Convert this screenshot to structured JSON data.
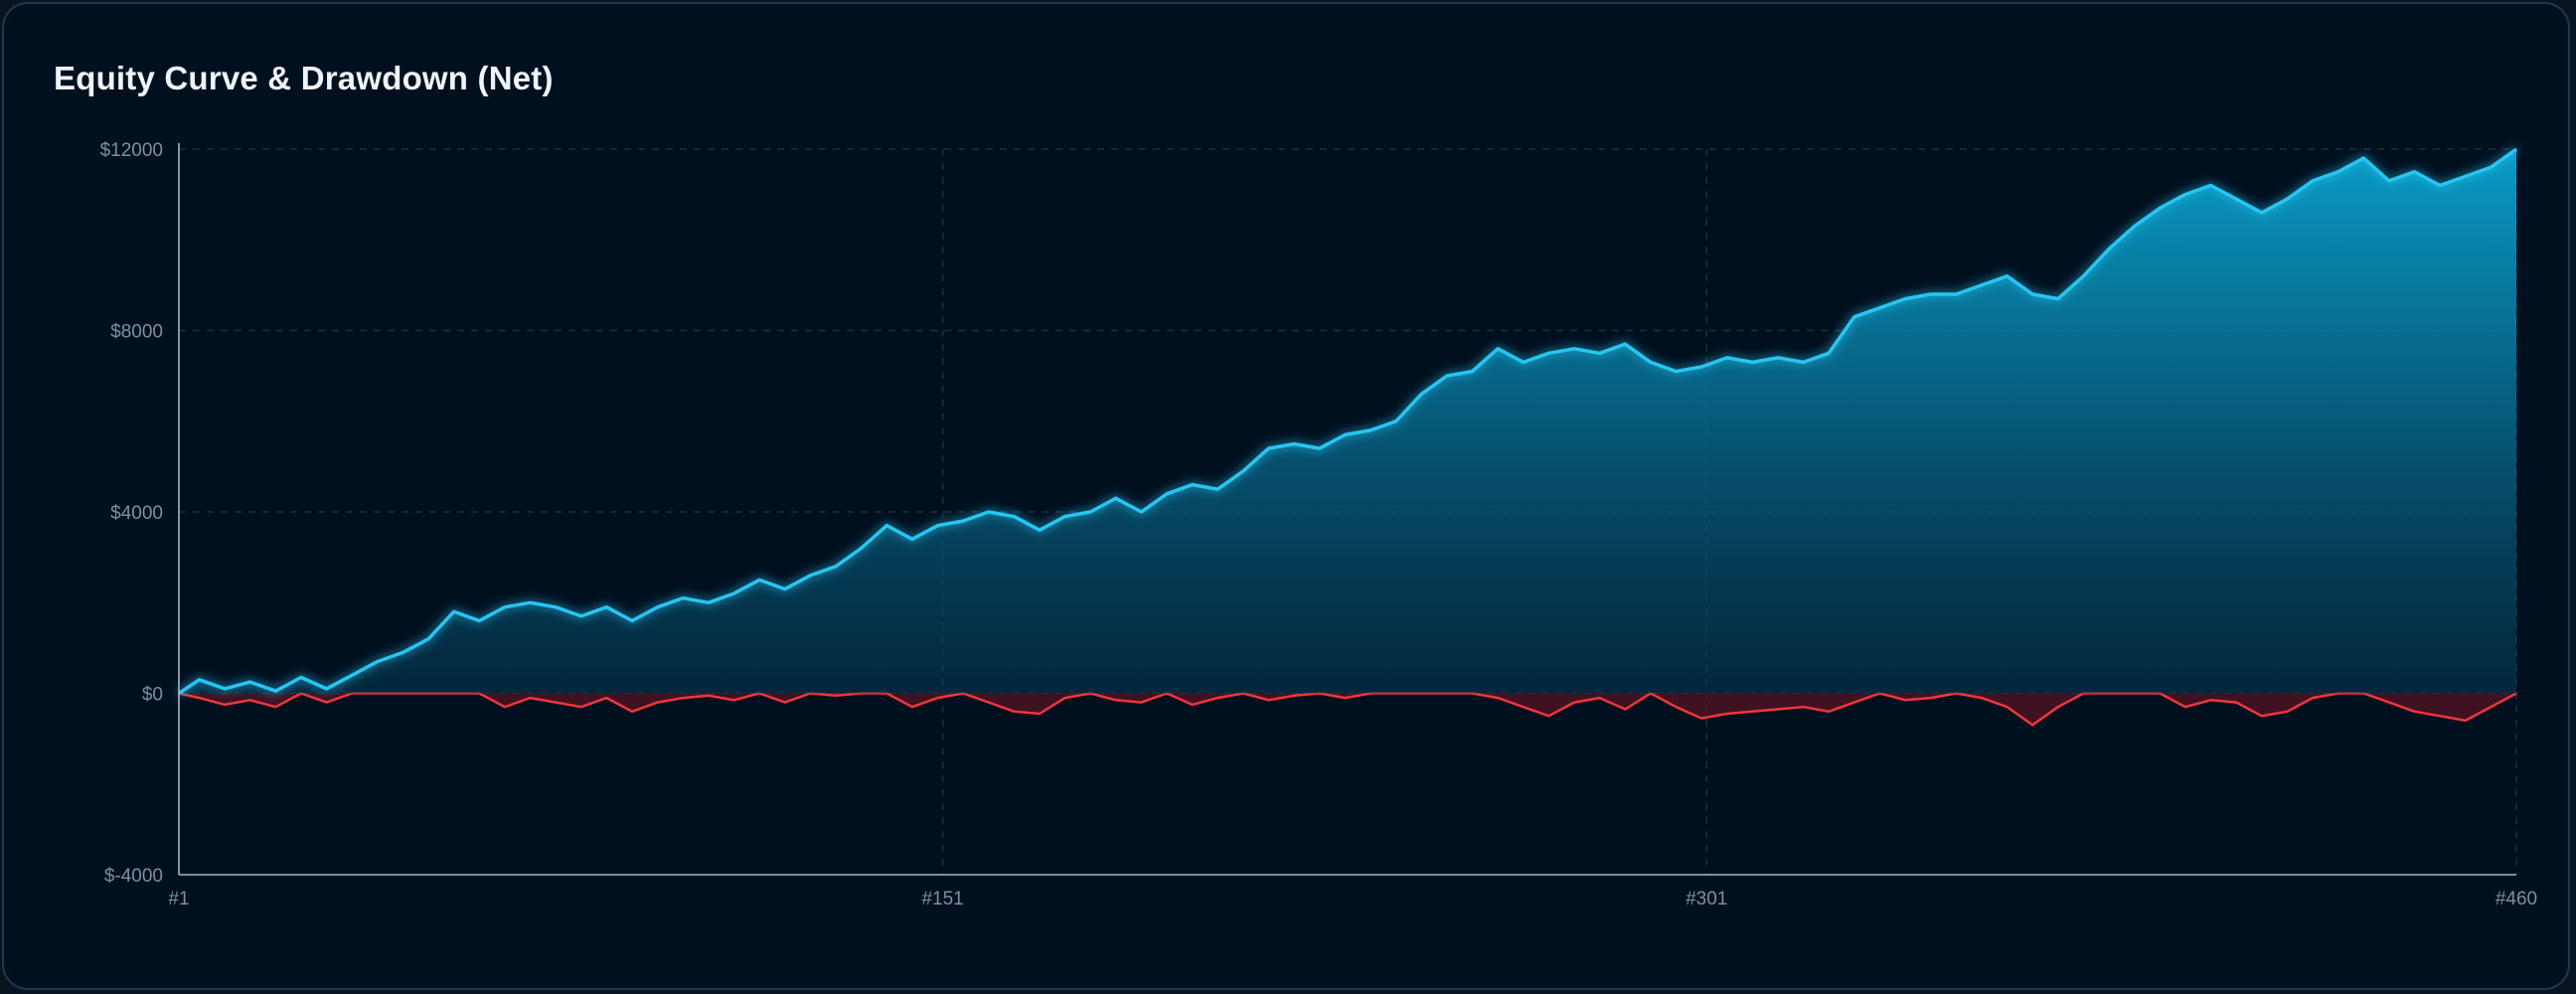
{
  "title": "Equity Curve & Drawdown (Net)",
  "colors": {
    "background": "#01101f",
    "equity_line": "#25c6f2",
    "equity_fill": "#0aa3cf",
    "drawdown_line": "#f0363c",
    "drawdown_fill": "#5a1422",
    "grid": "#1b3144",
    "axis": "#a9b6c4"
  },
  "chart_data": {
    "type": "area",
    "title": "Equity Curve & Drawdown (Net)",
    "xlabel": "",
    "ylabel": "",
    "x_ticks": [
      "#1",
      "#151",
      "#301",
      "#460"
    ],
    "y_ticks": [
      "$-4000",
      "$0",
      "$4000",
      "$8000",
      "$12000"
    ],
    "xlim": [
      1,
      460
    ],
    "ylim": [
      -4000,
      12000
    ],
    "grid": true,
    "legend": "none",
    "series": [
      {
        "x": [
          1,
          5,
          10,
          15,
          20,
          25,
          30,
          35,
          40,
          45,
          50,
          55,
          60,
          65,
          70,
          75,
          80,
          85,
          90,
          95,
          100,
          105,
          110,
          115,
          120,
          125,
          130,
          135,
          140,
          145,
          150,
          155,
          160,
          165,
          170,
          175,
          180,
          185,
          190,
          195,
          200,
          205,
          210,
          215,
          220,
          225,
          230,
          235,
          240,
          245,
          250,
          255,
          260,
          265,
          270,
          275,
          280,
          285,
          290,
          295,
          300,
          305,
          310,
          315,
          320,
          325,
          330,
          335,
          340,
          345,
          350,
          355,
          360,
          365,
          370,
          375,
          380,
          385,
          390,
          395,
          400,
          405,
          410,
          415,
          420,
          425,
          430,
          435,
          440,
          445,
          450,
          455,
          460
        ],
        "values": [
          0,
          300,
          100,
          250,
          50,
          350,
          100,
          400,
          700,
          900,
          1200,
          1800,
          1600,
          1900,
          2000,
          1900,
          1700,
          1900,
          1600,
          1900,
          2100,
          2000,
          2200,
          2500,
          2300,
          2600,
          2800,
          3200,
          3700,
          3400,
          3700,
          3800,
          4000,
          3900,
          3600,
          3900,
          4000,
          4300,
          4000,
          4400,
          4600,
          4500,
          4900,
          5400,
          5500,
          5400,
          5700,
          5800,
          6000,
          6600,
          7000,
          7100,
          7600,
          7300,
          7500,
          7600,
          7500,
          7700,
          7300,
          7100,
          7200,
          7400,
          7300,
          7400,
          7300,
          7500,
          8300,
          8500,
          8700,
          8800,
          8800,
          9000,
          9200,
          8800,
          8700,
          9200,
          9800,
          10300,
          10700,
          11000,
          11200,
          10900,
          10600,
          10900,
          11300,
          11500,
          11800,
          11300,
          11500,
          11200,
          11400,
          11600,
          12000
        ]
      },
      {
        "x": [
          1,
          5,
          10,
          15,
          20,
          25,
          30,
          35,
          40,
          45,
          50,
          55,
          60,
          65,
          70,
          75,
          80,
          85,
          90,
          95,
          100,
          105,
          110,
          115,
          120,
          125,
          130,
          135,
          140,
          145,
          150,
          155,
          160,
          165,
          170,
          175,
          180,
          185,
          190,
          195,
          200,
          205,
          210,
          215,
          220,
          225,
          230,
          235,
          240,
          245,
          250,
          255,
          260,
          265,
          270,
          275,
          280,
          285,
          290,
          295,
          300,
          305,
          310,
          315,
          320,
          325,
          330,
          335,
          340,
          345,
          350,
          355,
          360,
          365,
          370,
          375,
          380,
          385,
          390,
          395,
          400,
          405,
          410,
          415,
          420,
          425,
          430,
          435,
          440,
          445,
          450,
          455,
          460
        ],
        "values": [
          0,
          -100,
          -250,
          -150,
          -300,
          0,
          -200,
          0,
          0,
          0,
          0,
          0,
          0,
          -300,
          -100,
          -200,
          -300,
          -100,
          -400,
          -200,
          -100,
          -50,
          -150,
          0,
          -200,
          0,
          -50,
          0,
          0,
          -300,
          -100,
          0,
          -200,
          -400,
          -450,
          -100,
          0,
          -150,
          -200,
          0,
          -250,
          -100,
          0,
          -150,
          -50,
          0,
          -100,
          0,
          0,
          0,
          0,
          0,
          -100,
          -300,
          -500,
          -200,
          -100,
          -350,
          0,
          -300,
          -550,
          -450,
          -400,
          -350,
          -300,
          -400,
          -200,
          0,
          -150,
          -100,
          0,
          -100,
          -300,
          -700,
          -300,
          0,
          0,
          0,
          0,
          -300,
          -150,
          -200,
          -500,
          -400,
          -100,
          0,
          0,
          -200,
          -400,
          -500,
          -600,
          -300,
          0
        ]
      }
    ]
  }
}
